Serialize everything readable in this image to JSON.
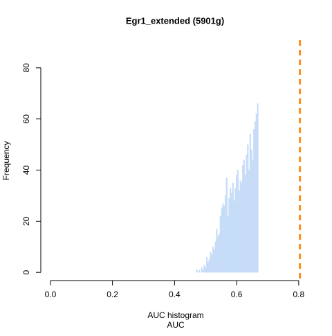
{
  "chart_data": {
    "type": "histogram",
    "title": "Egr1_extended (5901g)",
    "xlabel": "AUC histogram",
    "sublabel": "AUC",
    "ylabel": "Frequency",
    "bins": [
      0.47,
      0.474,
      0.478,
      0.482,
      0.486,
      0.49,
      0.494,
      0.498,
      0.502,
      0.506,
      0.51,
      0.514,
      0.518,
      0.522,
      0.526,
      0.53,
      0.534,
      0.538,
      0.542,
      0.546,
      0.55,
      0.554,
      0.558,
      0.562,
      0.566,
      0.57,
      0.574,
      0.578,
      0.582,
      0.586,
      0.59,
      0.594,
      0.598,
      0.602,
      0.606,
      0.61,
      0.614,
      0.618,
      0.622,
      0.626,
      0.63,
      0.634,
      0.638,
      0.642,
      0.646,
      0.65,
      0.654,
      0.658,
      0.662,
      0.666,
      0.67
    ],
    "values": [
      1,
      0,
      1,
      0,
      2,
      1,
      3,
      2,
      6,
      4,
      5,
      8,
      7,
      10,
      9,
      12,
      17,
      14,
      15,
      22,
      25,
      27,
      26,
      30,
      37,
      22,
      29,
      33,
      31,
      35,
      28,
      33,
      38,
      40,
      32,
      36,
      35,
      42,
      44,
      38,
      46,
      50,
      40,
      54,
      48,
      44,
      56,
      59,
      62,
      66
    ],
    "color": "#c6dcf7",
    "threshold": {
      "value": 0.804,
      "color": "#ff8c1a"
    },
    "xlim": [
      -0.031,
      0.836
    ],
    "ylim": [
      -3.2,
      90.8
    ],
    "xticks": [
      {
        "value": 0,
        "label": "0.0"
      },
      0.2,
      0.4,
      0.6,
      0.8
    ],
    "yticks": [
      0,
      20,
      40,
      60,
      80
    ]
  }
}
